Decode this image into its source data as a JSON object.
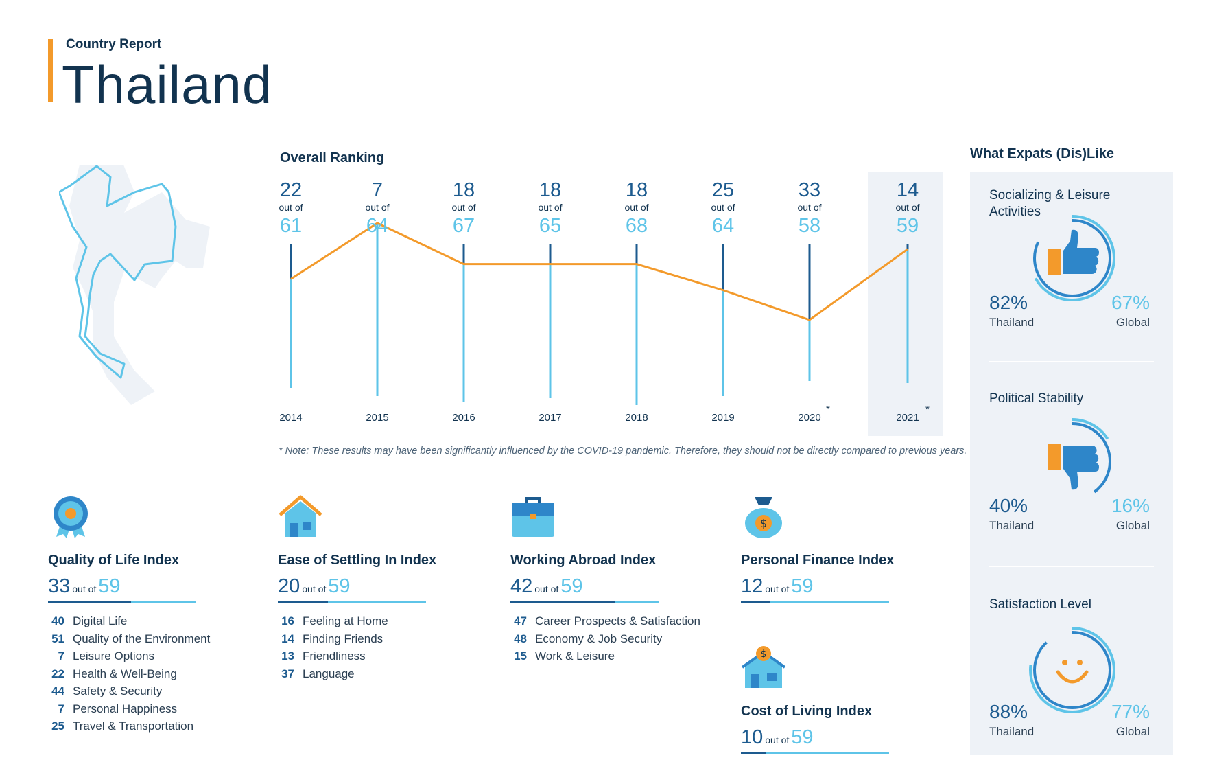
{
  "header": {
    "subtitle": "Country Report",
    "country": "Thailand"
  },
  "ranking": {
    "title": "Overall Ranking",
    "out_of_label": "out of",
    "note": "* Note: These results may have been significantly influenced by the COVID-19 pandemic. Therefore, they should not be directly compared to previous years.",
    "asterisk": "*",
    "years": [
      {
        "year": "2014",
        "rank": "22",
        "total": "61"
      },
      {
        "year": "2015",
        "rank": "7",
        "total": "64"
      },
      {
        "year": "2016",
        "rank": "18",
        "total": "67"
      },
      {
        "year": "2017",
        "rank": "18",
        "total": "65"
      },
      {
        "year": "2018",
        "rank": "18",
        "total": "68"
      },
      {
        "year": "2019",
        "rank": "25",
        "total": "64"
      },
      {
        "year": "2020",
        "rank": "33",
        "total": "58"
      },
      {
        "year": "2021",
        "rank": "14",
        "total": "59"
      }
    ]
  },
  "chart_data": {
    "type": "line",
    "title": "Overall Ranking",
    "x": [
      "2014",
      "2015",
      "2016",
      "2017",
      "2018",
      "2019",
      "2020",
      "2021"
    ],
    "series": [
      {
        "name": "Rank",
        "values": [
          22,
          7,
          18,
          18,
          18,
          25,
          33,
          14
        ]
      },
      {
        "name": "Out of",
        "values": [
          61,
          64,
          67,
          65,
          68,
          64,
          58,
          59
        ]
      }
    ],
    "annotations": [
      "2020 *",
      "2021 *"
    ],
    "xlabel": "",
    "ylabel": ""
  },
  "indices": {
    "out_of_label": "out of",
    "quality": {
      "title": "Quality of Life Index",
      "rank": "33",
      "total": "59",
      "fraction": 0.56,
      "items": [
        {
          "rank": "40",
          "label": "Digital Life"
        },
        {
          "rank": "51",
          "label": "Quality of the Environment"
        },
        {
          "rank": "7",
          "label": "Leisure Options"
        },
        {
          "rank": "22",
          "label": "Health & Well-Being"
        },
        {
          "rank": "44",
          "label": "Safety & Security"
        },
        {
          "rank": "7",
          "label": "Personal Happiness"
        },
        {
          "rank": "25",
          "label": "Travel & Transportation"
        }
      ]
    },
    "settling": {
      "title": "Ease of Settling In Index",
      "rank": "20",
      "total": "59",
      "fraction": 0.34,
      "items": [
        {
          "rank": "16",
          "label": "Feeling at Home"
        },
        {
          "rank": "14",
          "label": "Finding Friends"
        },
        {
          "rank": "13",
          "label": "Friendliness"
        },
        {
          "rank": "37",
          "label": "Language"
        }
      ]
    },
    "working": {
      "title": "Working Abroad Index",
      "rank": "42",
      "total": "59",
      "fraction": 0.71,
      "items": [
        {
          "rank": "47",
          "label": "Career Prospects & Satisfaction"
        },
        {
          "rank": "48",
          "label": "Economy & Job Security"
        },
        {
          "rank": "15",
          "label": "Work & Leisure"
        }
      ]
    },
    "finance": {
      "title": "Personal Finance Index",
      "rank": "12",
      "total": "59",
      "fraction": 0.2
    },
    "living": {
      "title": "Cost of Living Index",
      "rank": "10",
      "total": "59",
      "fraction": 0.17
    }
  },
  "likes": {
    "title": "What Expats (Dis)Like",
    "local_label": "Thailand",
    "global_label": "Global",
    "items": [
      {
        "label": "Socializing & Leisure Activities",
        "local": "82%",
        "global": "67%",
        "local_value": 0.82,
        "global_value": 0.67
      },
      {
        "label": "Political Stability",
        "local": "40%",
        "global": "16%",
        "local_value": 0.4,
        "global_value": 0.16
      },
      {
        "label": "Satisfaction Level",
        "local": "88%",
        "global": "77%",
        "local_value": 0.88,
        "global_value": 0.77
      }
    ]
  },
  "colors": {
    "accent": "#f39a2b",
    "navy": "#12334f",
    "blue": "#1d5b8f",
    "light_blue": "#5ec4e8",
    "panel": "#eef2f7"
  }
}
